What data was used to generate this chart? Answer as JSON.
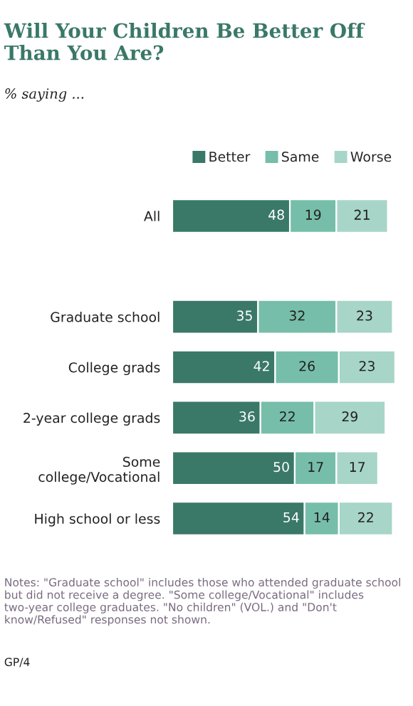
{
  "chart_data": {
    "type": "bar",
    "orientation": "horizontal",
    "stacked": true,
    "title": "Will Your Children Be Better Off Than You Are?",
    "subtitle": "% saying ...",
    "categories": [
      "All",
      null,
      "Graduate school",
      "College grads",
      "2-year college grads",
      "Some\ncollege/Vocational",
      "High school or less"
    ],
    "series": [
      {
        "name": "Better",
        "color": "#3a7868",
        "values": [
          48,
          null,
          35,
          42,
          36,
          50,
          54
        ]
      },
      {
        "name": "Same",
        "color": "#76bea9",
        "values": [
          19,
          null,
          32,
          26,
          22,
          17,
          14
        ]
      },
      {
        "name": "Worse",
        "color": "#a7d5c8",
        "values": [
          21,
          null,
          23,
          23,
          29,
          17,
          22
        ]
      }
    ],
    "data_labels": true,
    "legend": "top",
    "grid": false,
    "annotations": [
      "Notes: \"Graduate school\" includes those who attended graduate school but did not receive a degree. \"Some college/Vocational\" includes two-year college graduates. \"No children\" (VOL.) and \"Don't know/Refused\" responses not shown.",
      "GP/4"
    ]
  }
}
